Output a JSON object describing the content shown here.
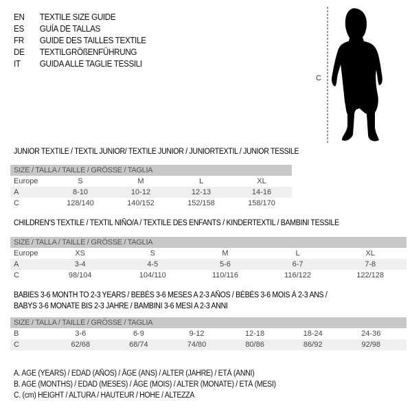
{
  "titles": [
    {
      "code": "EN",
      "text": "TEXTILE SIZE GUIDE"
    },
    {
      "code": "ES",
      "text": "GUÍA DE TALLAS"
    },
    {
      "code": "FR",
      "text": "GUIDE DES TAILLES TEXTILE"
    },
    {
      "code": "DE",
      "text": "TEXTILGRÖßENFÜHRUNG"
    },
    {
      "code": "IT",
      "text": "GUIDA ALLE TAGLIE TESSILI"
    }
  ],
  "figure": {
    "measure_label": "C",
    "icon": "child-silhouette-icon"
  },
  "tables": [
    {
      "heading": [
        "JUNIOR TEXTILE / TEXTIL JUNIOR/ TEXTILE JUNIOR / JUNIORTEXTIL / JUNIOR TESSILE"
      ],
      "header": "SIZE / TALLA / TAILLE / GRÖSSE / TAGLIA",
      "rows": [
        {
          "label": "Europe",
          "cells": [
            "S",
            "M",
            "L",
            "XL"
          ]
        },
        {
          "label": "A",
          "cells": [
            "8-10",
            "10-12",
            "12-13",
            "14-16"
          ]
        },
        {
          "label": "C",
          "cells": [
            "128/140",
            "140/152",
            "152/158",
            "158/170"
          ]
        }
      ]
    },
    {
      "heading": [
        "CHILDREN'S TEXTILE / TEXTIL NIÑO/A / TEXTILE DES ENFANTS / KINDERTEXTIL / BAMBINI TESSILE"
      ],
      "header": "SIZE / TALLA / TAILLE / GRÖSSE / TAGLIA",
      "rows": [
        {
          "label": "Europe",
          "cells": [
            "XS",
            "S",
            "M",
            "L",
            "XL"
          ]
        },
        {
          "label": "A",
          "cells": [
            "3-4",
            "4-5",
            "5-6",
            "6-7",
            "7-8"
          ]
        },
        {
          "label": "C",
          "cells": [
            "98/104",
            "104/110",
            "110/116",
            "116/122",
            "122/128"
          ]
        }
      ]
    },
    {
      "heading": [
        "BABIES 3-6 MONTH TO 2-3 YEARS / BEBÉS 3-6 MESES A 2-3 AÑOS / BÉBÉS 3-6 MOIS À 2-3 ANS /",
        "BABYS 3-6 MONATE BIS 2-3 JAHRE / BAMBINI 3-6 MESI A 2-3 ANNI"
      ],
      "header": "SIZE / TALLA / TAILLE / GRÖSSE / TAGLIA",
      "rows": [
        {
          "label": "B",
          "cells": [
            "3-6",
            "6-9",
            "9-12",
            "12-18",
            "18-24",
            "24-36"
          ]
        },
        {
          "label": "C",
          "cells": [
            "62/68",
            "68/74",
            "74/80",
            "80/86",
            "86/92",
            "92/98"
          ]
        }
      ]
    }
  ],
  "legend": [
    "A. AGE (YEARS) / EDAD (AÑOS) / ÂGE (ANS) / ALTER (JAHRE) / ETÀ (ANNI)",
    "B. AGE (MONTHS) / EDAD (MESES) / ÂGE (MOIS) / ALTER (MONATE) / ETÀ (MESI)",
    "C. (cm) HEIGHT / ALTURA / HAUTEUR / HÖHE / ALTEZZA"
  ]
}
